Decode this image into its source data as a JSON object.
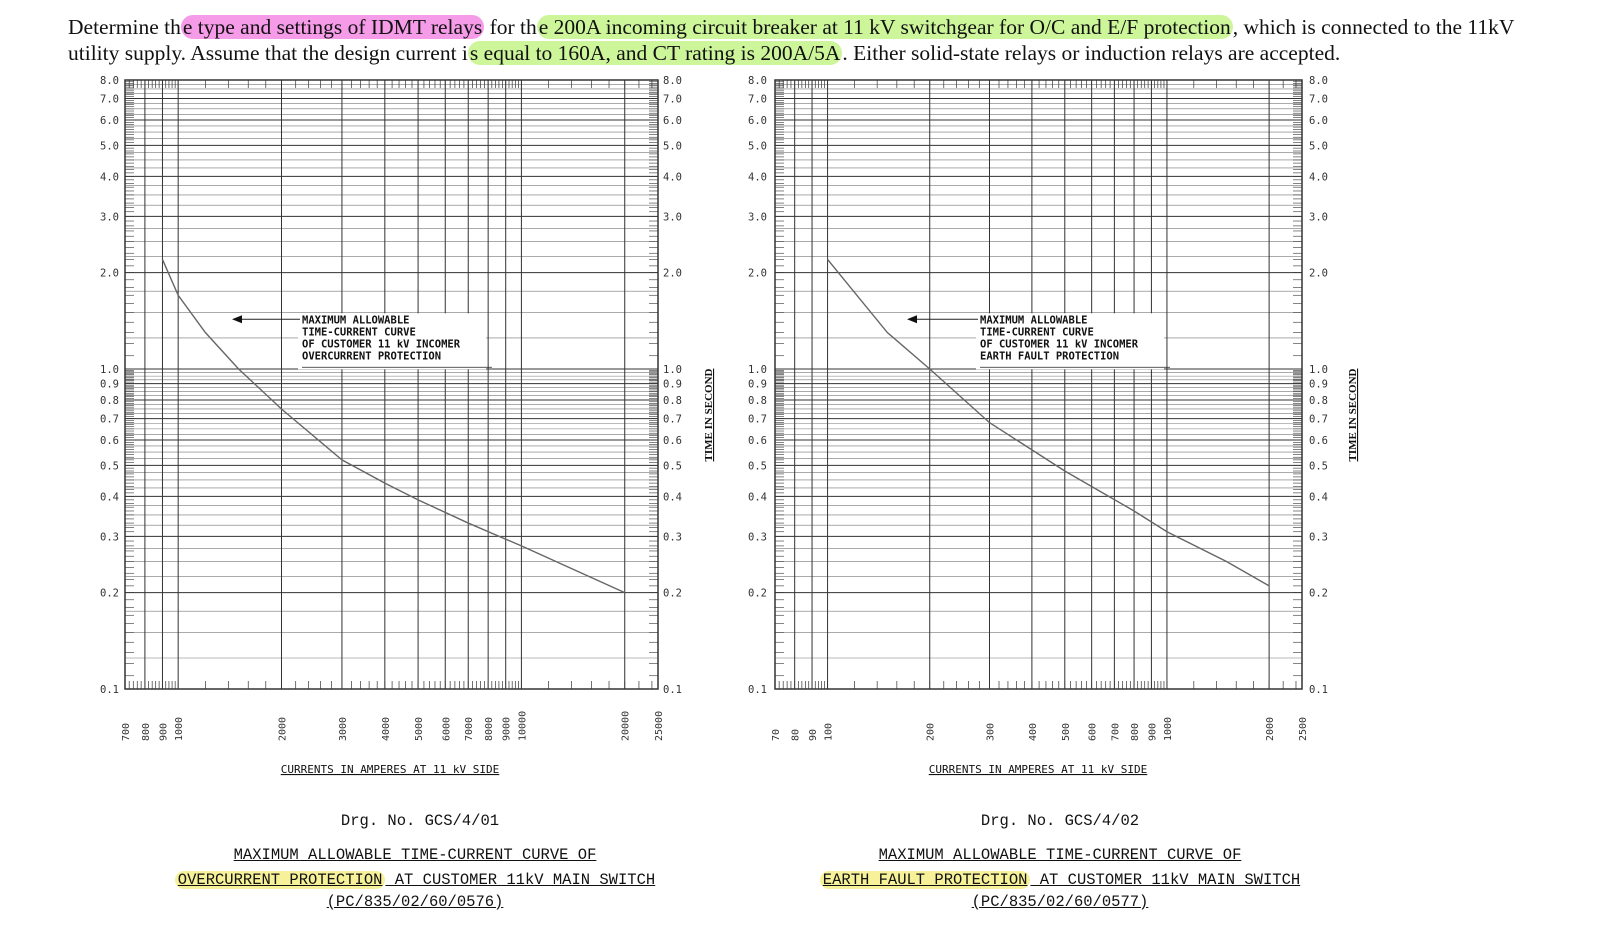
{
  "question": {
    "p1": "Determine th",
    "hl1": "e type and settings of IDMT relays",
    "p2": " for th",
    "hl2": "e 200A incoming circuit breaker at 11 kV switchgear for O/C and E/F protection",
    "p3": ", which is connected to the 11kV utility supply. Assume that the design current i",
    "hl3": "s equal to 160A,  and CT rating is 200A/5A",
    "p4": ". Either solid-state relays or induction relays are accepted."
  },
  "colors": {
    "pink": "#f59be8",
    "green": "#cdf59a",
    "yellow": "#f7f29a",
    "grid": "#333333",
    "curve": "#666666"
  },
  "chart_data": [
    {
      "type": "line",
      "x_scale": "log",
      "y_scale": "log",
      "xlim": [
        700,
        25000
      ],
      "ylim": [
        0.1,
        8.0
      ],
      "xlabel": "CURRENTS IN AMPERES AT 11 kV SIDE",
      "ylabel": "TIME IN SECOND",
      "x_ticks": [
        "700",
        "800",
        "900",
        "1000",
        "2000",
        "3000",
        "4000",
        "5000",
        "6000",
        "7000",
        "8000",
        "9000",
        "10000",
        "20000",
        "25000"
      ],
      "y_ticks_left": [
        "8.0",
        "7.0",
        "6.0",
        "5.0",
        "4.0",
        "3.0",
        "2.0",
        "1.0",
        "0.9",
        "0.8",
        "0.7",
        "0.6",
        "0.5",
        "0.4",
        "0.3",
        "0.2",
        "0.1"
      ],
      "y_ticks_right": [
        "8.0",
        "7.0",
        "6.0",
        "5.0",
        "4.0",
        "3.0",
        "2.0",
        "1.0",
        "0.9",
        "0.8",
        "0.7",
        "0.6",
        "0.5",
        "0.4",
        "0.3",
        "0.2",
        "0.1"
      ],
      "annotation": [
        "MAXIMUM ALLOWABLE",
        "TIME-CURRENT CURVE",
        "OF CUSTOMER 11 kV INCOMER",
        "OVERCURRENT PROTECTION"
      ],
      "annotation_pos": {
        "x": 1500,
        "y": 1.35
      },
      "series": [
        {
          "x": [
            900,
            1000,
            1200,
            1500,
            2000,
            3000,
            4000,
            5000,
            7000,
            10000,
            15000,
            20000
          ],
          "y": [
            2.2,
            1.7,
            1.3,
            1.0,
            0.75,
            0.52,
            0.44,
            0.39,
            0.33,
            0.28,
            0.23,
            0.2
          ]
        }
      ],
      "drawing_no": "Drg.  No.  GCS/4/01",
      "caption_l1": "MAXIMUM  ALLOWABLE  TIME-CURRENT  CURVE  OF",
      "caption_l2_hl": "OVERCURRENT  PROTECTION",
      "caption_l2_rest": "  AT  CUSTOMER  11kV  MAIN  SWITCH",
      "caption_l3": "(PC/835/02/60/0576)"
    },
    {
      "type": "line",
      "x_scale": "log",
      "y_scale": "log",
      "xlim": [
        70,
        2500
      ],
      "ylim": [
        0.1,
        8.0
      ],
      "xlabel": "CURRENTS IN AMPERES AT 11 kV SIDE",
      "ylabel": "TIME IN SECOND",
      "x_ticks": [
        "70",
        "80",
        "90",
        "100",
        "200",
        "300",
        "400",
        "500",
        "600",
        "700",
        "800",
        "900",
        "1000",
        "2000",
        "2500"
      ],
      "y_ticks_left": [
        "8.0",
        "7.0",
        "6.0",
        "5.0",
        "4.0",
        "3.0",
        "2.0",
        "1.0",
        "0.9",
        "0.8",
        "0.7",
        "0.6",
        "0.5",
        "0.4",
        "0.3",
        "0.2",
        "0.1"
      ],
      "y_ticks_right": [
        "8.0",
        "7.0",
        "6.0",
        "5.0",
        "4.0",
        "3.0",
        "2.0",
        "1.0",
        "0.9",
        "0.8",
        "0.7",
        "0.6",
        "0.5",
        "0.4",
        "0.3",
        "0.2",
        "0.1"
      ],
      "annotation": [
        "MAXIMUM ALLOWABLE",
        "TIME-CURRENT CURVE",
        "OF CUSTOMER 11 kV INCOMER",
        "EARTH FAULT PROTECTION"
      ],
      "annotation_pos": {
        "x": 150,
        "y": 1.35
      },
      "series": [
        {
          "x": [
            100,
            150,
            200,
            300,
            500,
            800,
            1000,
            1500,
            2000
          ],
          "y": [
            2.2,
            1.3,
            1.0,
            0.68,
            0.48,
            0.36,
            0.31,
            0.25,
            0.21
          ]
        }
      ],
      "drawing_no": "Drg.  No.  GCS/4/02",
      "caption_l1": "MAXIMUM  ALLOWABLE  TIME-CURRENT  CURVE  OF",
      "caption_l2_hl": "EARTH  FAULT  PROTECTION",
      "caption_l2_rest": "  AT  CUSTOMER  11kV  MAIN  SWITCH",
      "caption_l3": "(PC/835/02/60/0577)"
    }
  ]
}
